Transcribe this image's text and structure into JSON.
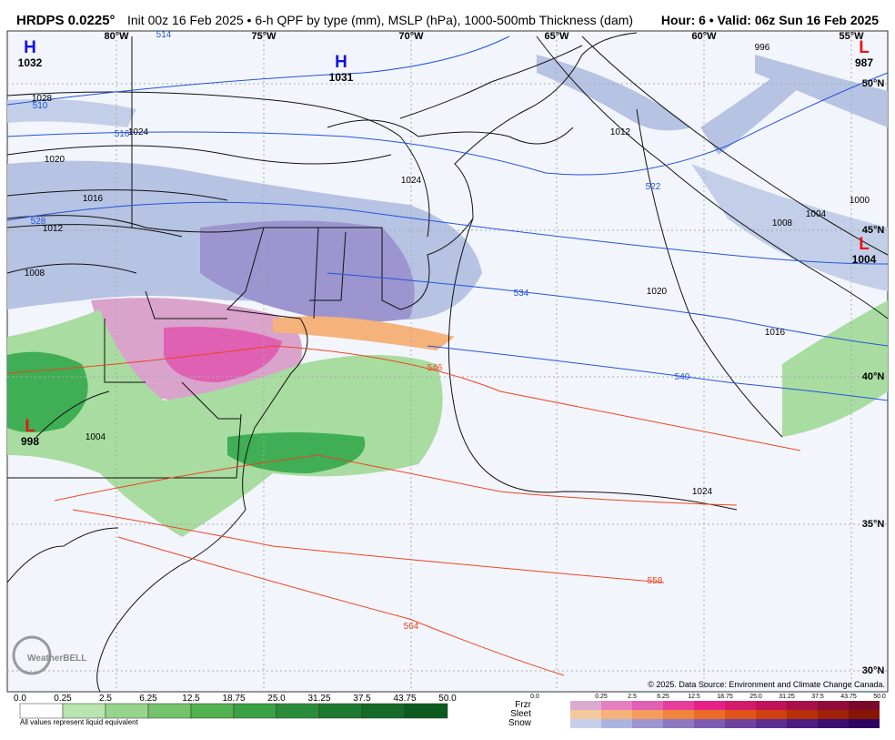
{
  "header": {
    "model": "HRDPS 0.0225°",
    "description": "Init 00z 16 Feb 2025 • 6-h QPF by type (mm), MSLP (hPa), 1000-500mb Thickness (dam)",
    "valid": "Hour: 6 • Valid: 06z Sun 16 Feb 2025"
  },
  "map": {
    "longitudes": [
      "80°W",
      "75°W",
      "70°W",
      "65°W",
      "60°W",
      "55°W"
    ],
    "latitudes": [
      "50°N",
      "45°N",
      "40°N",
      "35°N",
      "30°N"
    ],
    "pressure_centers": [
      {
        "letter": "H",
        "value": "1032"
      },
      {
        "letter": "H",
        "value": "1031"
      },
      {
        "letter": "L",
        "value": "987"
      },
      {
        "letter": "L",
        "value": "1004"
      },
      {
        "letter": "L",
        "value": "998"
      }
    ],
    "isobar_labels": [
      "1028",
      "1024",
      "1020",
      "1016",
      "1012",
      "1008",
      "1004",
      "1012",
      "1004",
      "1008",
      "1000",
      "996",
      "1020",
      "1016",
      "1024",
      "1024"
    ],
    "thickness_labels": [
      "510",
      "516",
      "528",
      "534",
      "540",
      "522",
      "514",
      "546",
      "558",
      "564"
    ]
  },
  "legend": {
    "rain_labels": [
      "0.0",
      "0.25",
      "2.5",
      "6.25",
      "12.5",
      "18.75",
      "25.0",
      "31.25",
      "37.5",
      "43.75",
      "50.0"
    ],
    "type_labels": [
      "0.0",
      "0.25",
      "2.5",
      "6.25",
      "12.5",
      "18.75",
      "25.0",
      "31.25",
      "37.5",
      "43.75",
      "50.0"
    ],
    "types": [
      "Frzr",
      "Sleet",
      "Snow"
    ],
    "note": "All values represent liquid equivalent",
    "copyright": "© 2025. Data Source: Environment and Climate Change Canada.",
    "logo": "WeatherBELL"
  }
}
